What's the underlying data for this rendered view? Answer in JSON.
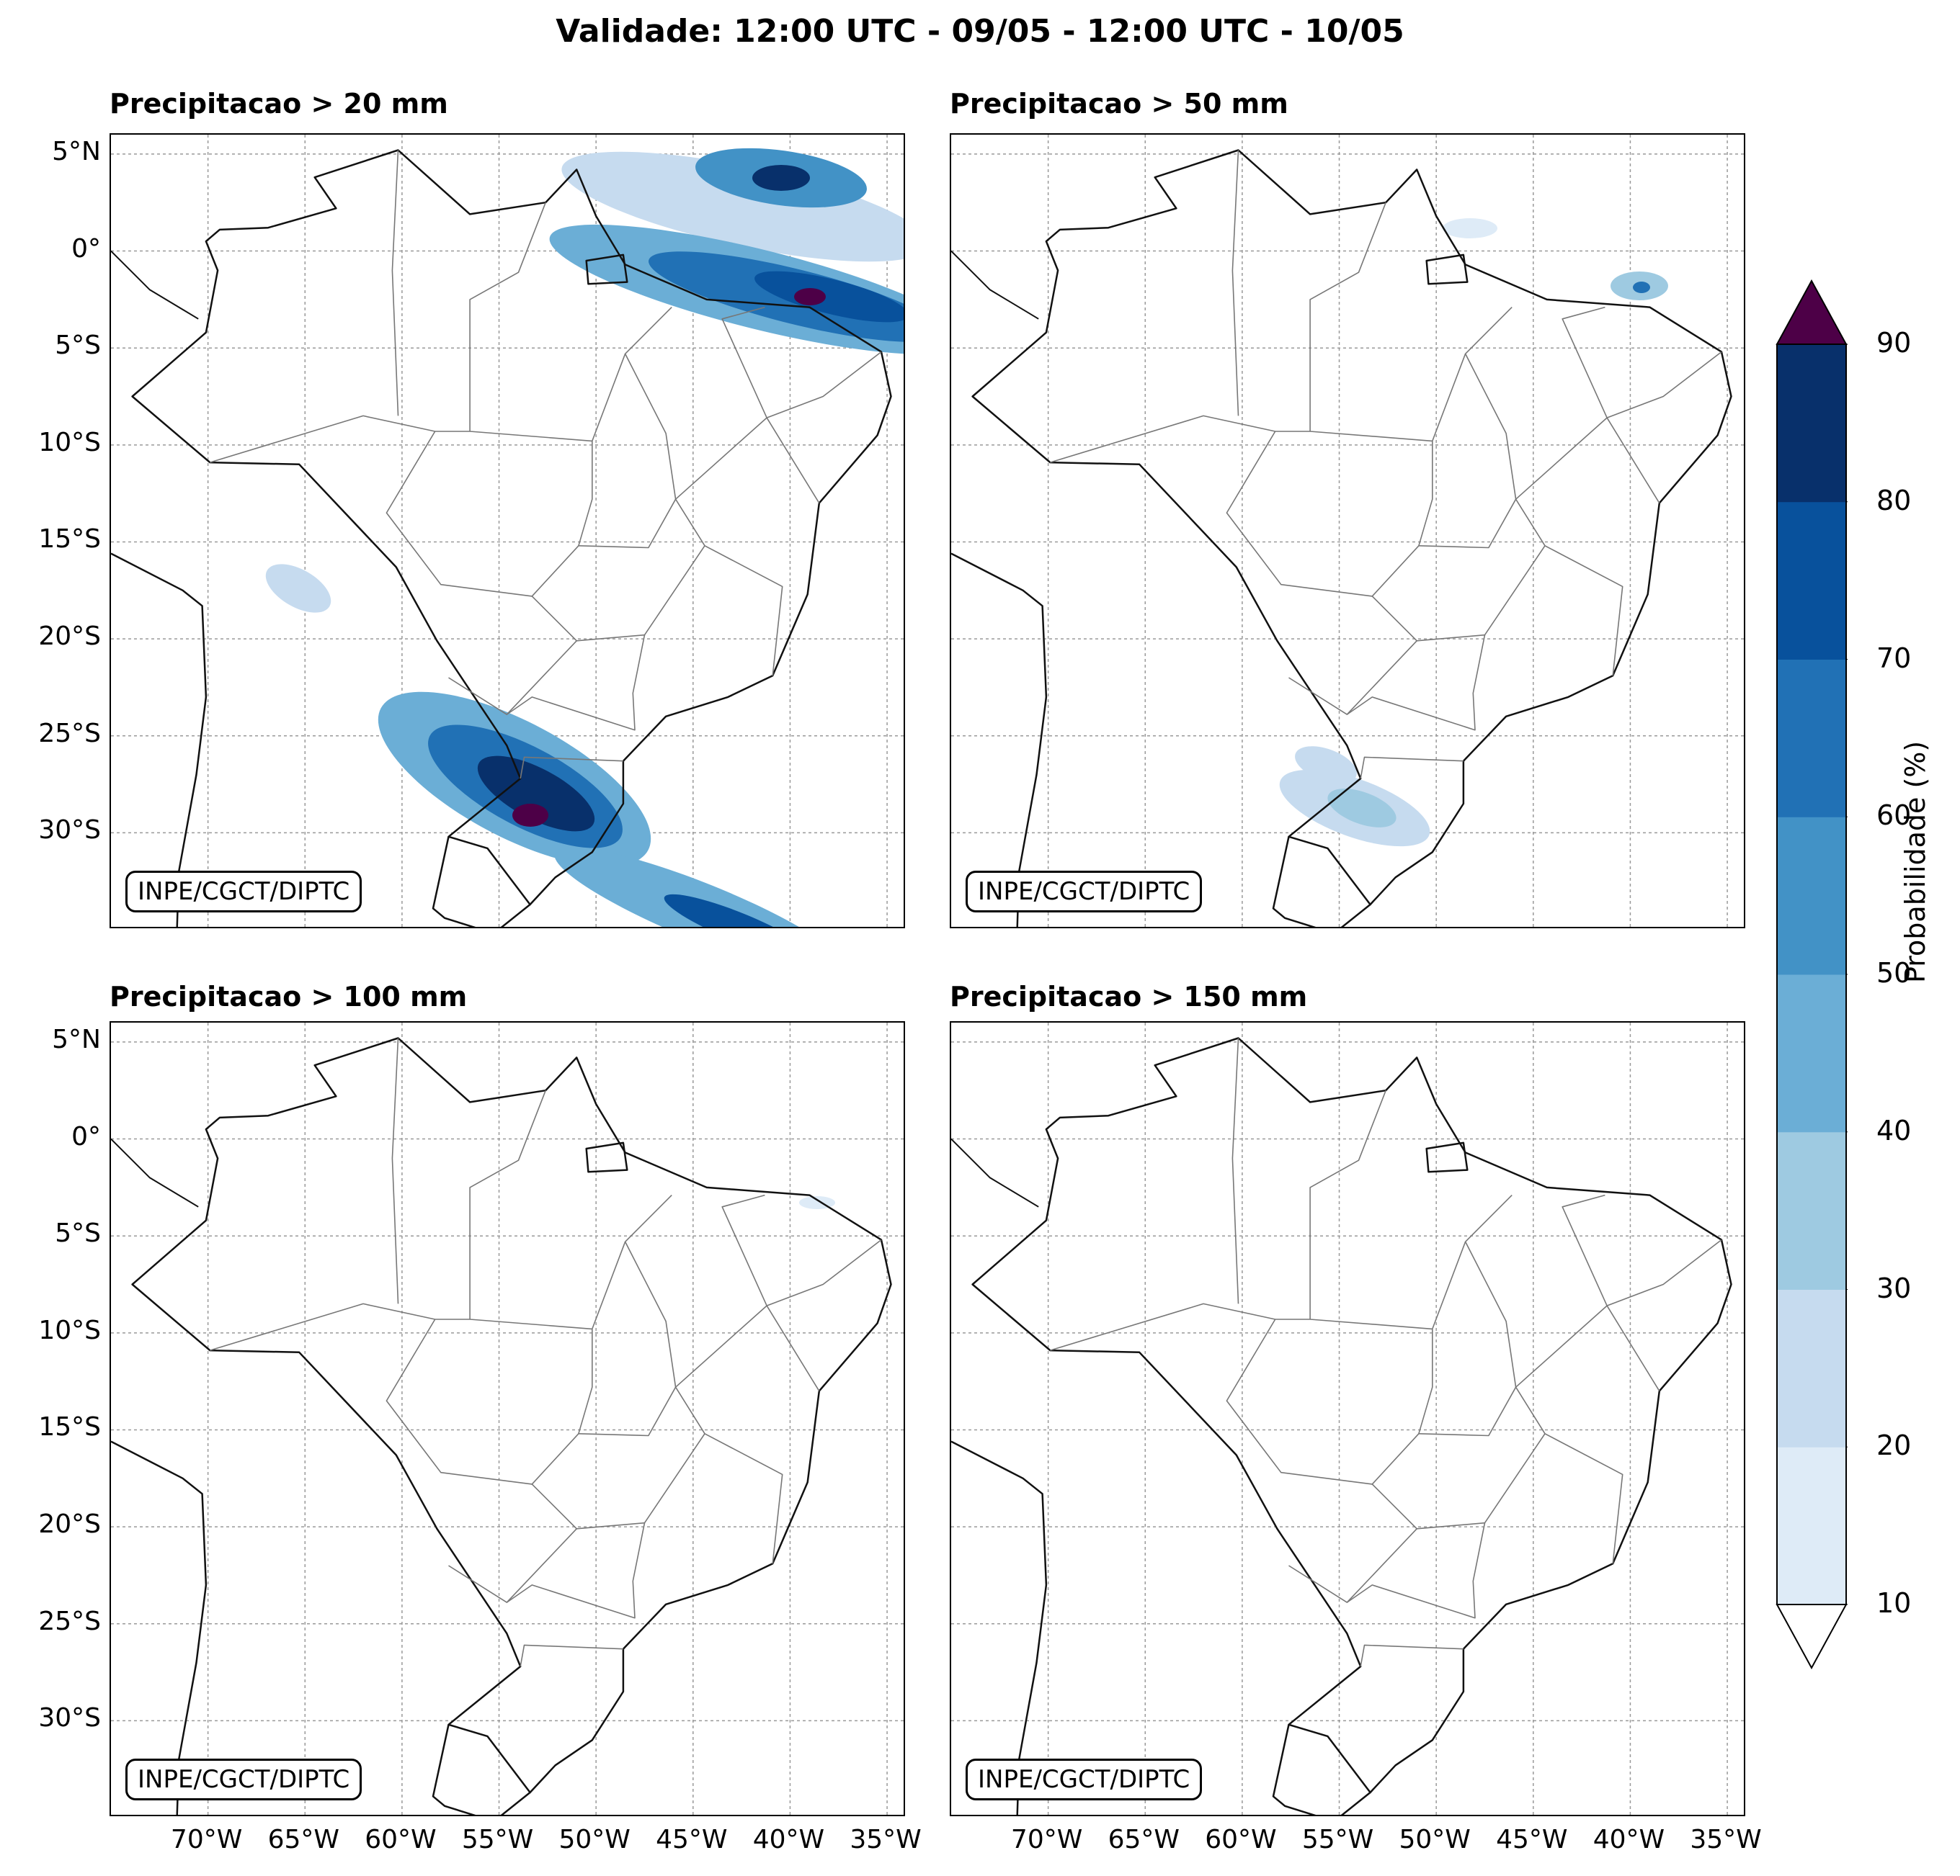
{
  "title": "Validade: 12:00 UTC - 09/05 - 12:00 UTC - 10/05",
  "credit": "INPE/CGCT/DIPTC",
  "panels": [
    {
      "title": "Precipitacao > 20 mm"
    },
    {
      "title": "Precipitacao > 50 mm"
    },
    {
      "title": "Precipitacao > 100 mm"
    },
    {
      "title": "Precipitacao > 150 mm"
    }
  ],
  "lat_labels": [
    "5°N",
    "0°",
    "5°S",
    "10°S",
    "15°S",
    "20°S",
    "25°S",
    "30°S"
  ],
  "lon_labels": [
    "70°W",
    "65°W",
    "60°W",
    "55°W",
    "50°W",
    "45°W",
    "40°W",
    "35°W"
  ],
  "lat_values": [
    5,
    0,
    -5,
    -10,
    -15,
    -20,
    -25,
    -30
  ],
  "lon_values": [
    -70,
    -65,
    -60,
    -55,
    -50,
    -45,
    -40,
    -35
  ],
  "extent": {
    "lon": [
      -75,
      -34
    ],
    "lat": [
      -35,
      6
    ]
  },
  "colorbar": {
    "label": "Probabilidade (%)",
    "ticks": [
      "10",
      "20",
      "30",
      "40",
      "50",
      "60",
      "70",
      "80",
      "90"
    ],
    "colors": [
      "#deebf7",
      "#c6dbef",
      "#9ecae1",
      "#6baed6",
      "#4292c6",
      "#2171b5",
      "#08519c",
      "#08306b"
    ],
    "over_color": "#4d0047",
    "under_color": "#ffffff"
  }
}
